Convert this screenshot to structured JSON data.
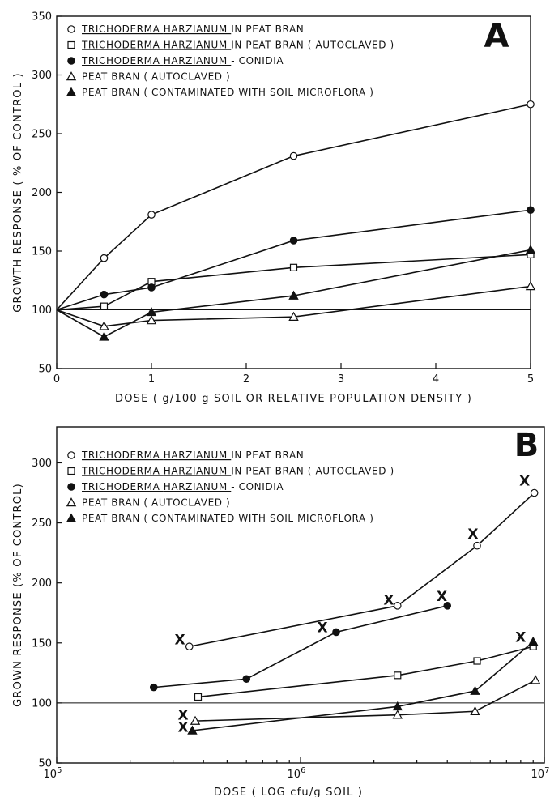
{
  "chart_data": [
    {
      "type": "line",
      "panel_letter": "A",
      "xlabel": "DOSE ( g/100 g SOIL OR RELATIVE POPULATION DENSITY )",
      "ylabel": "GROWTH RESPONSE ( % OF CONTROL )",
      "xlim": [
        0,
        5
      ],
      "ylim": [
        50,
        350
      ],
      "xticks": [
        0,
        1,
        2,
        3,
        4,
        5
      ],
      "yticks": [
        50,
        100,
        150,
        200,
        250,
        300,
        350
      ],
      "reference_line": 100,
      "grid": false,
      "legend_position": "top-left",
      "series": [
        {
          "name": "TRICHODERMA HARZIANUM IN PEAT BRAN",
          "marker": "open-circle",
          "x": [
            0,
            0.5,
            1,
            2.5,
            5
          ],
          "y": [
            100,
            144,
            181,
            231,
            275
          ]
        },
        {
          "name": "TRICHODERMA HARZIANUM IN PEAT BRAN ( AUTOCLAVED )",
          "marker": "open-square",
          "x": [
            0,
            0.5,
            1,
            2.5,
            5
          ],
          "y": [
            100,
            103,
            124,
            136,
            147
          ]
        },
        {
          "name": "TRICHODERMA HARZIANUM - CONIDIA",
          "marker": "filled-circle",
          "x": [
            0,
            0.5,
            1,
            2.5,
            5
          ],
          "y": [
            100,
            113,
            119,
            159,
            185
          ]
        },
        {
          "name": "PEAT BRAN ( AUTOCLAVED )",
          "marker": "open-triangle",
          "x": [
            0,
            0.5,
            1,
            2.5,
            5
          ],
          "y": [
            100,
            86,
            91,
            94,
            120
          ]
        },
        {
          "name": "PEAT BRAN ( CONTAMINATED WITH SOIL MICROFLORA )",
          "marker": "filled-triangle",
          "x": [
            0,
            0.5,
            1,
            2.5,
            5
          ],
          "y": [
            100,
            77,
            98,
            112,
            151
          ]
        }
      ]
    },
    {
      "type": "line",
      "panel_letter": "B",
      "xlabel": "DOSE ( LOG cfu/g SOIL )",
      "ylabel": "GROWN RESPONSE (% OF CONTROL)",
      "xscale": "log",
      "xlim": [
        100000,
        10000000
      ],
      "ylim": [
        50,
        330
      ],
      "xticks": [
        {
          "base": "10",
          "exp": "5"
        },
        {
          "base": "10",
          "exp": "6"
        },
        {
          "base": "10",
          "exp": "7"
        }
      ],
      "yticks": [
        50,
        100,
        150,
        200,
        250,
        300
      ],
      "reference_line": 100,
      "grid": false,
      "legend_position": "top-left",
      "x_marks_label": "X",
      "series": [
        {
          "name": "TRICHODERMA HARZIANUM IN PEAT BRAN",
          "marker": "open-circle",
          "x": [
            350000,
            2500000,
            5300000,
            9100000
          ],
          "y": [
            147,
            181,
            231,
            275
          ]
        },
        {
          "name": "TRICHODERMA HARZIANUM IN PEAT BRAN ( AUTOCLAVED )",
          "marker": "open-square",
          "x": [
            380000,
            2500000,
            5300000,
            9000000
          ],
          "y": [
            105,
            123,
            135,
            147
          ]
        },
        {
          "name": "TRICHODERMA HARZIANUM - CONIDIA",
          "marker": "filled-circle",
          "x": [
            250000,
            600000,
            1400000,
            4000000
          ],
          "y": [
            113,
            120,
            159,
            181
          ]
        },
        {
          "name": "PEAT BRAN ( AUTOCLAVED )",
          "marker": "open-triangle",
          "x": [
            370000,
            2500000,
            5200000,
            9200000
          ],
          "y": [
            85,
            90,
            93,
            119
          ]
        },
        {
          "name": "PEAT BRAN ( CONTAMINATED WITH SOIL MICROFLORA )",
          "marker": "filled-triangle",
          "x": [
            360000,
            2500000,
            5200000,
            9000000
          ],
          "y": [
            77,
            97,
            110,
            151
          ]
        }
      ],
      "x_marks": [
        {
          "x": 320000,
          "y": 153
        },
        {
          "x": 1230000,
          "y": 163
        },
        {
          "x": 3800000,
          "y": 189
        },
        {
          "x": 2300000,
          "y": 186
        },
        {
          "x": 5100000,
          "y": 241
        },
        {
          "x": 8300000,
          "y": 285
        },
        {
          "x": 8000000,
          "y": 155
        },
        {
          "x": 330000,
          "y": 90
        },
        {
          "x": 330000,
          "y": 80
        }
      ]
    }
  ]
}
